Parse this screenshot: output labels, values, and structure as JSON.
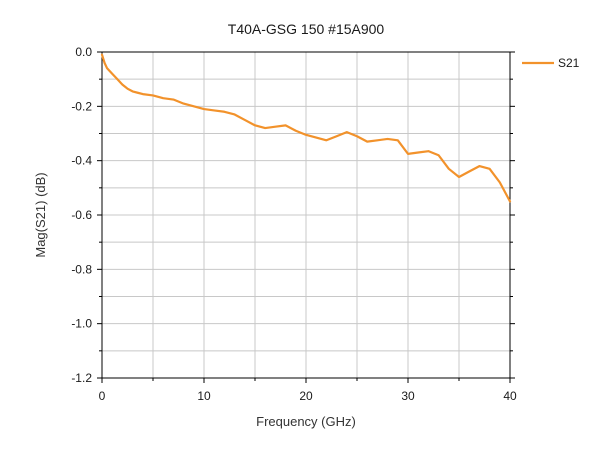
{
  "chart_data": {
    "type": "line",
    "title": "T40A-GSG 150 #15A900",
    "xlabel": "Frequency (GHz)",
    "ylabel": "Mag(S21) (dB)",
    "xlim": [
      0,
      40
    ],
    "ylim": [
      -1.2,
      0.0
    ],
    "xticks": [
      0,
      10,
      20,
      30,
      40
    ],
    "xtick_labels": [
      "0",
      "10",
      "20",
      "30",
      "40"
    ],
    "yticks": [
      0.0,
      -0.2,
      -0.4,
      -0.6,
      -0.8,
      -1.0,
      -1.2
    ],
    "ytick_labels": [
      "0.0",
      "-0.2",
      "-0.4",
      "-0.6",
      "-0.8",
      "-1.0",
      "-1.2"
    ],
    "grid": true,
    "legend_position": "top-right",
    "series": [
      {
        "name": "S21",
        "color": "#f2922b",
        "x": [
          0,
          0.25,
          0.5,
          1,
          1.5,
          2,
          2.5,
          3,
          3.5,
          4,
          5,
          6,
          7,
          8,
          9,
          10,
          11,
          12,
          13,
          14,
          15,
          16,
          17,
          18,
          19,
          20,
          21,
          22,
          23,
          24,
          25,
          26,
          27,
          28,
          29,
          30,
          31,
          32,
          33,
          34,
          35,
          36,
          37,
          38,
          39,
          40
        ],
        "y": [
          -0.01,
          -0.04,
          -0.06,
          -0.08,
          -0.1,
          -0.12,
          -0.135,
          -0.145,
          -0.15,
          -0.155,
          -0.16,
          -0.17,
          -0.175,
          -0.19,
          -0.2,
          -0.21,
          -0.215,
          -0.22,
          -0.23,
          -0.25,
          -0.27,
          -0.28,
          -0.275,
          -0.27,
          -0.29,
          -0.305,
          -0.315,
          -0.325,
          -0.31,
          -0.295,
          -0.31,
          -0.33,
          -0.325,
          -0.32,
          -0.325,
          -0.375,
          -0.37,
          -0.365,
          -0.38,
          -0.43,
          -0.46,
          -0.44,
          -0.42,
          -0.43,
          -0.48,
          -0.55
        ]
      }
    ]
  }
}
